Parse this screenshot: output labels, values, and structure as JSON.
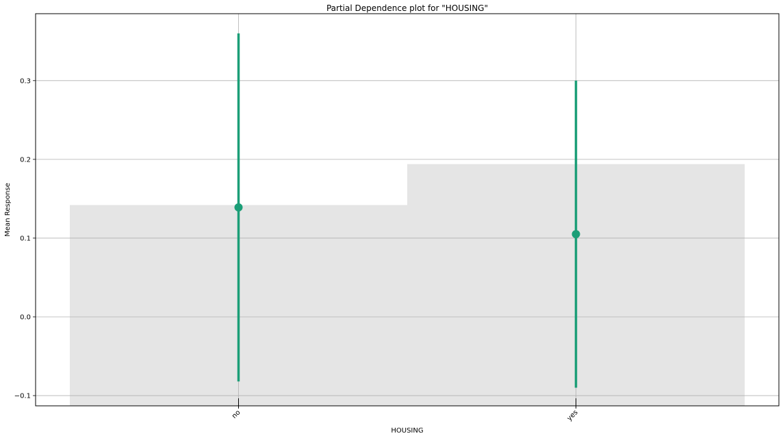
{
  "chart_data": {
    "type": "bar",
    "title": "Partial Dependence plot for \"HOUSING\"",
    "xlabel": "HOUSING",
    "ylabel": "Mean Response",
    "categories": [
      "no",
      "yes"
    ],
    "histogram_values": [
      0.142,
      0.194
    ],
    "series": [
      {
        "values": [
          0.139,
          0.105
        ],
        "lower": [
          -0.082,
          -0.09
        ],
        "upper": [
          0.36,
          0.3
        ]
      }
    ],
    "ylim": [
      -0.113,
      0.385
    ],
    "yticks": [
      -0.1,
      0.0,
      0.1,
      0.2,
      0.3
    ],
    "ytick_labels": [
      "−0.1",
      "0.0",
      "0.1",
      "0.2",
      "0.3"
    ],
    "grid": true,
    "colors": {
      "series": "#1b9e77",
      "histogram": "#e5e5e5",
      "grid": "#b0b0b0",
      "axis": "#000000"
    }
  }
}
